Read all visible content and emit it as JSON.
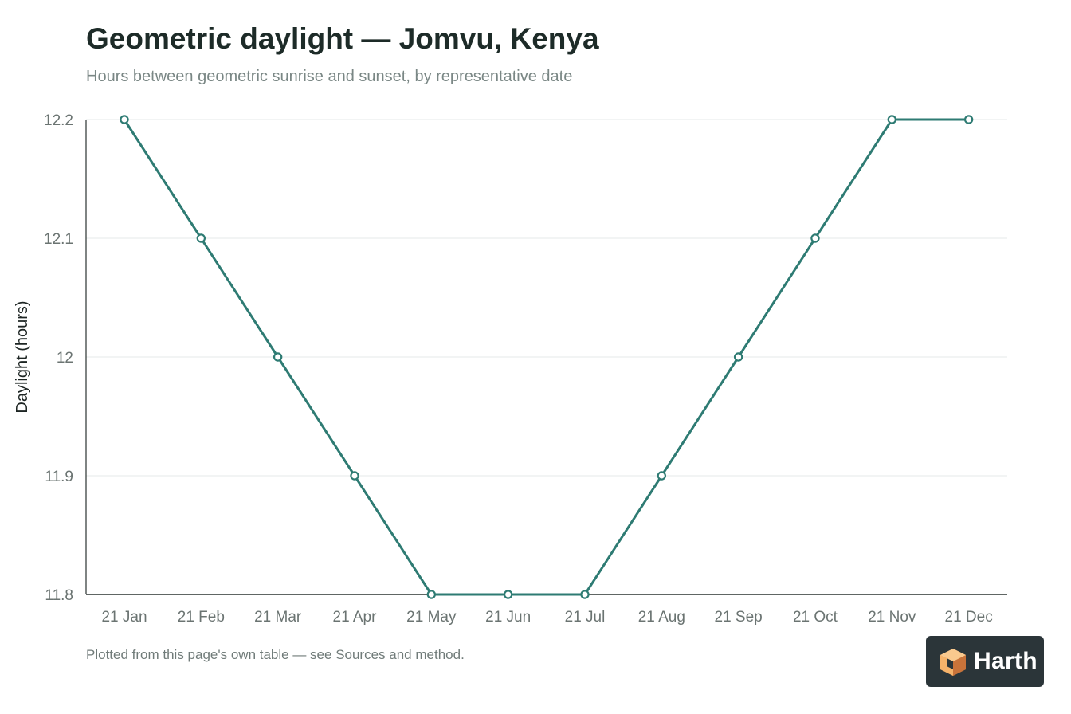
{
  "page": {
    "title": "Geometric daylight — Jomvu, Kenya",
    "subtitle": "Hours between geometric sunrise and sunset, by representative date",
    "footnote": "Plotted from this page's own table — see Sources and method.",
    "brand": "Harth"
  },
  "colors": {
    "line": "#2e7b73",
    "grid": "#e6e9e8",
    "axis": "#2b3331",
    "tick_label": "#6b7472",
    "axis_title": "#1d2523",
    "logo_orange_light": "#f6b36a",
    "logo_orange_dark": "#e0894a",
    "badge_bg": "#2b3539"
  },
  "icons": {
    "badge": "harth-cube-logo-icon"
  },
  "chart_data": {
    "type": "line",
    "title": "Geometric daylight — Jomvu, Kenya",
    "subtitle": "Hours between geometric sunrise and sunset, by representative date",
    "xlabel": "",
    "ylabel": "Daylight (hours)",
    "categories": [
      "21 Jan",
      "21 Feb",
      "21 Mar",
      "21 Apr",
      "21 May",
      "21 Jun",
      "21 Jul",
      "21 Aug",
      "21 Sep",
      "21 Oct",
      "21 Nov",
      "21 Dec"
    ],
    "series": [
      {
        "values": [
          12.2,
          12.1,
          12.0,
          11.9,
          11.8,
          11.8,
          11.8,
          11.9,
          12.0,
          12.1,
          12.2,
          12.2
        ]
      }
    ],
    "yticks": [
      11.8,
      11.9,
      12.0,
      12.1,
      12.2
    ],
    "ytick_labels": [
      "11.8",
      "11.9",
      "12",
      "12.1",
      "12.2"
    ],
    "ylim": [
      11.8,
      12.2
    ],
    "grid": true,
    "legend": false,
    "markers": "hollow-circles"
  }
}
